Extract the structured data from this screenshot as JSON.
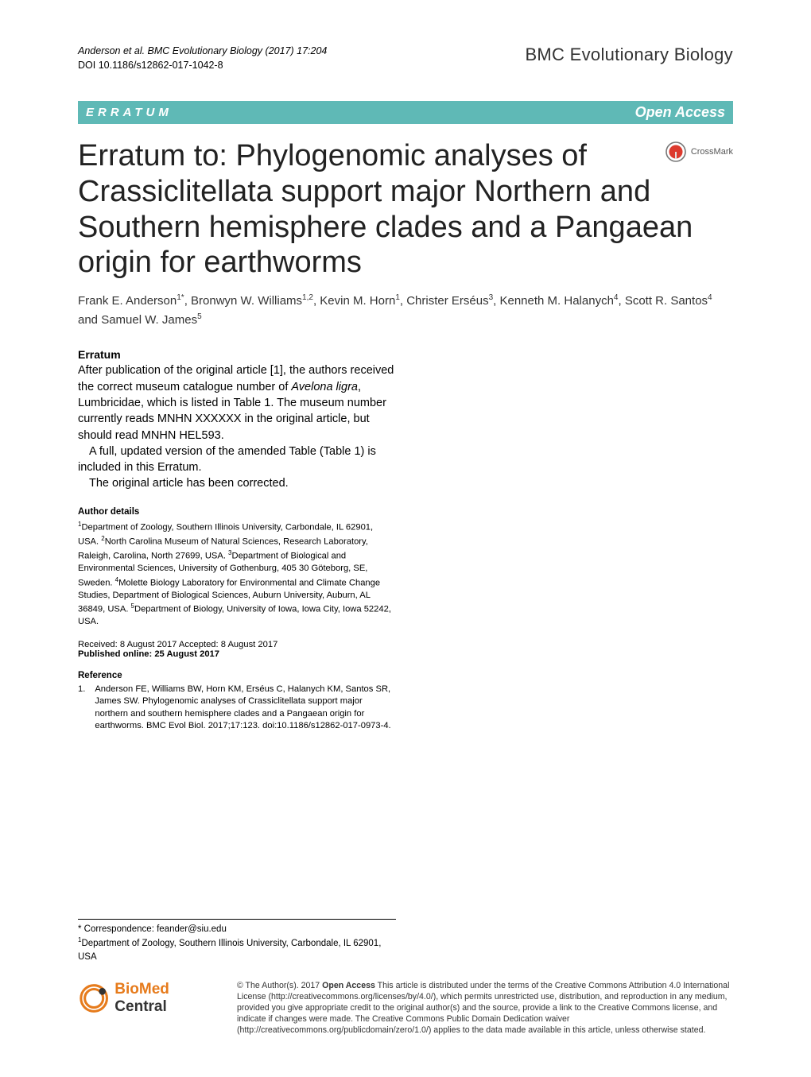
{
  "header": {
    "citation": "Anderson et al. BMC Evolutionary Biology  (2017) 17:204",
    "doi": "DOI 10.1186/s12862-017-1042-8",
    "journal": "BMC Evolutionary Biology"
  },
  "category_bar": {
    "label": "ERRATUM",
    "access": "Open Access"
  },
  "crossmark": {
    "label": "CrossMark",
    "circle_fill": "#dc3a2e",
    "ring": "#777"
  },
  "title": "Erratum to: Phylogenomic analyses of Crassiclitellata support major Northern and Southern hemisphere clades and a Pangaean origin for earthworms",
  "authors_html": "Frank E. Anderson<sup>1*</sup>, Bronwyn W. Williams<sup>1,2</sup>, Kevin M. Horn<sup>1</sup>, Christer Erséus<sup>3</sup>, Kenneth M. Halanych<sup>4</sup>, Scott R. Santos<sup>4</sup> and Samuel W. James<sup>5</sup>",
  "erratum": {
    "heading": "Erratum",
    "p1_html": "After publication of the original article [1], the authors received the correct museum catalogue number of <span class=\"italic\">Avelona ligra</span>, Lumbricidae, which is listed in Table 1. The museum number currently reads MNHN XXXXXX in the original article, but should read MNHN HEL593.",
    "p2": "A full, updated version of the amended Table (Table 1) is included in this Erratum.",
    "p3": "The original article has been corrected."
  },
  "author_details": {
    "heading": "Author details",
    "text_html": "<sup>1</sup>Department of Zoology, Southern Illinois University, Carbondale, IL 62901, USA. <sup>2</sup>North Carolina Museum of Natural Sciences, Research Laboratory, Raleigh, Carolina, North 27699, USA. <sup>3</sup>Department of Biological and Environmental Sciences, University of Gothenburg, 405 30 Göteborg, SE, Sweden. <sup>4</sup>Molette Biology Laboratory for Environmental and Climate Change Studies, Department of Biological Sciences, Auburn University, Auburn, AL 36849, USA. <sup>5</sup>Department of Biology, University of Iowa, Iowa City, Iowa 52242, USA."
  },
  "dates": {
    "received_accepted": "Received: 8 August 2017 Accepted: 8 August 2017",
    "published": "Published online: 25 August 2017"
  },
  "reference": {
    "heading": "Reference",
    "num": "1.",
    "text": "Anderson FE, Williams BW, Horn KM, Erséus C, Halanych KM, Santos SR, James SW. Phylogenomic analyses of Crassiclitellata support major northern and southern hemisphere clades and a Pangaean origin for earthworms. BMC Evol Biol. 2017;17:123. doi:10.1186/s12862-017-0973-4."
  },
  "correspondence": {
    "line1": "* Correspondence: feander@siu.edu",
    "line2_html": "<sup>1</sup>Department of Zoology, Southern Illinois University, Carbondale, IL 62901, USA"
  },
  "biomed": {
    "bio": "BioMed",
    "central": " Central",
    "icon_color": "#e67b1c"
  },
  "license": {
    "text_html": "© The Author(s). 2017 <span class=\"oa-bold\">Open Access</span> This article is distributed under the terms of the Creative Commons Attribution 4.0 International License (http://creativecommons.org/licenses/by/4.0/), which permits unrestricted use, distribution, and reproduction in any medium, provided you give appropriate credit to the original author(s) and the source, provide a link to the Creative Commons license, and indicate if changes were made. The Creative Commons Public Domain Dedication waiver (http://creativecommons.org/publicdomain/zero/1.0/) applies to the data made available in this article, unless otherwise stated."
  },
  "colors": {
    "category_bar_bg": "#5fb9b6",
    "text": "#000000",
    "background": "#ffffff"
  }
}
